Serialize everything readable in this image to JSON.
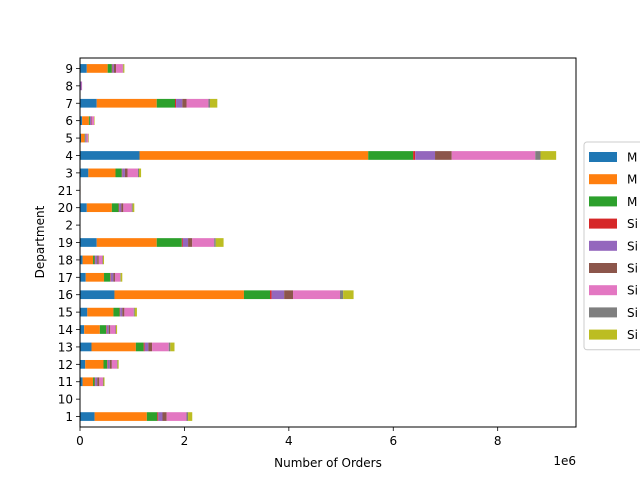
{
  "chart_data": {
    "type": "bar",
    "orientation": "horizontal",
    "stacked": true,
    "title": "",
    "xlabel": "Number of Orders",
    "ylabel": "Department",
    "x_offset_label": "1e6",
    "xlim": [
      0,
      9.5
    ],
    "x_unit_multiplier": 1000000,
    "xticks": [
      0,
      2,
      4,
      6,
      8
    ],
    "grid": false,
    "legend_position": "center-right",
    "categories": [
      "1",
      "10",
      "11",
      "12",
      "13",
      "14",
      "15",
      "16",
      "17",
      "18",
      "19",
      "2",
      "20",
      "21",
      "3",
      "4",
      "5",
      "6",
      "7",
      "8",
      "9"
    ],
    "series": [
      {
        "name": "M",
        "color": "#1f77b4",
        "values": [
          0.28,
          0.0,
          0.05,
          0.1,
          0.22,
          0.08,
          0.14,
          0.66,
          0.11,
          0.05,
          0.32,
          0.0,
          0.13,
          0.0,
          0.16,
          1.14,
          0.02,
          0.04,
          0.32,
          0.0,
          0.13
        ]
      },
      {
        "name": "M",
        "color": "#ff7f0e",
        "values": [
          1.0,
          0.0,
          0.2,
          0.35,
          0.85,
          0.3,
          0.5,
          2.48,
          0.35,
          0.2,
          1.15,
          0.0,
          0.48,
          0.01,
          0.52,
          4.38,
          0.07,
          0.13,
          1.15,
          0.01,
          0.4
        ]
      },
      {
        "name": "M",
        "color": "#2ca02c",
        "values": [
          0.2,
          0.0,
          0.03,
          0.07,
          0.15,
          0.12,
          0.12,
          0.5,
          0.12,
          0.03,
          0.48,
          0.0,
          0.13,
          0.0,
          0.12,
          0.86,
          0.01,
          0.02,
          0.35,
          0.0,
          0.08
        ]
      },
      {
        "name": "Si",
        "color": "#d62728",
        "values": [
          0.02,
          0.0,
          0.01,
          0.01,
          0.02,
          0.01,
          0.01,
          0.03,
          0.01,
          0.01,
          0.02,
          0.0,
          0.01,
          0.0,
          0.01,
          0.04,
          0.0,
          0.0,
          0.02,
          0.0,
          0.01
        ]
      },
      {
        "name": "Si",
        "color": "#9467bd",
        "values": [
          0.08,
          0.0,
          0.04,
          0.04,
          0.07,
          0.04,
          0.04,
          0.24,
          0.05,
          0.04,
          0.1,
          0.0,
          0.04,
          0.0,
          0.05,
          0.38,
          0.02,
          0.02,
          0.12,
          0.02,
          0.03
        ]
      },
      {
        "name": "Si",
        "color": "#8c564b",
        "values": [
          0.08,
          0.0,
          0.04,
          0.04,
          0.07,
          0.03,
          0.04,
          0.17,
          0.03,
          0.03,
          0.08,
          0.0,
          0.04,
          0.0,
          0.05,
          0.32,
          0.01,
          0.01,
          0.08,
          0.0,
          0.04
        ]
      },
      {
        "name": "Si",
        "color": "#e377c2",
        "values": [
          0.38,
          0.0,
          0.07,
          0.1,
          0.32,
          0.1,
          0.18,
          0.9,
          0.1,
          0.07,
          0.42,
          0.0,
          0.16,
          0.0,
          0.2,
          1.6,
          0.03,
          0.05,
          0.42,
          0.01,
          0.13
        ]
      },
      {
        "name": "Si",
        "color": "#7f7f7f",
        "values": [
          0.03,
          0.0,
          0.01,
          0.01,
          0.03,
          0.01,
          0.02,
          0.06,
          0.01,
          0.01,
          0.03,
          0.0,
          0.02,
          0.0,
          0.02,
          0.1,
          0.0,
          0.0,
          0.03,
          0.0,
          0.01
        ]
      },
      {
        "name": "Si",
        "color": "#bcbd22",
        "values": [
          0.08,
          0.0,
          0.02,
          0.02,
          0.08,
          0.02,
          0.04,
          0.2,
          0.03,
          0.02,
          0.15,
          0.0,
          0.03,
          0.0,
          0.04,
          0.3,
          0.01,
          0.01,
          0.14,
          0.0,
          0.02
        ]
      }
    ]
  }
}
